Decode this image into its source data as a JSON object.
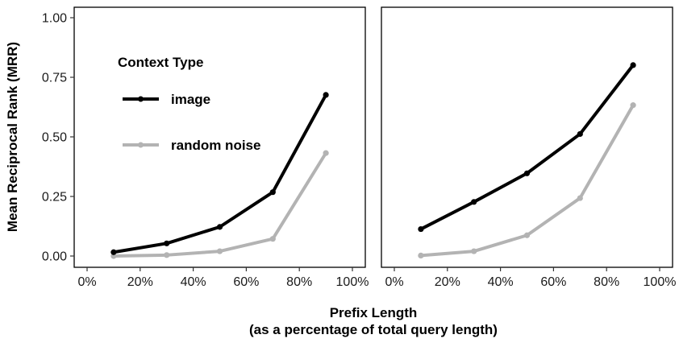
{
  "chart_data": {
    "type": "line",
    "xlabel_line1": "Prefix Length",
    "xlabel_line2": "(as a percentage of total query length)",
    "ylabel": "Mean Reciprocal Rank (MRR)",
    "xlim": [
      0,
      100
    ],
    "ylim": [
      0,
      1.0
    ],
    "x_ticks": [
      0,
      20,
      40,
      60,
      80,
      100
    ],
    "x_tick_labels": [
      "0%",
      "20%",
      "40%",
      "60%",
      "80%",
      "100%"
    ],
    "y_ticks": [
      0,
      0.25,
      0.5,
      0.75,
      1.0
    ],
    "y_tick_labels": [
      "0.00",
      "0.25",
      "0.50",
      "0.75",
      "1.00"
    ],
    "grid": false,
    "legend": {
      "title": "Context Type",
      "placement": "top-left of left panel",
      "entries": [
        "image",
        "random noise"
      ]
    },
    "colors": {
      "image": "#000000",
      "random noise": "#b3b3b3"
    },
    "panels": [
      {
        "x": [
          10,
          30,
          50,
          70,
          90
        ],
        "series": [
          {
            "name": "image",
            "values": [
              0.016,
              0.053,
              0.122,
              0.268,
              0.676
            ]
          },
          {
            "name": "random noise",
            "values": [
              0.0,
              0.004,
              0.02,
              0.072,
              0.432
            ]
          }
        ]
      },
      {
        "x": [
          10,
          30,
          50,
          70,
          90
        ],
        "series": [
          {
            "name": "image",
            "values": [
              0.113,
              0.227,
              0.347,
              0.512,
              0.801
            ]
          },
          {
            "name": "random noise",
            "values": [
              0.002,
              0.02,
              0.087,
              0.243,
              0.633
            ]
          }
        ]
      }
    ]
  }
}
